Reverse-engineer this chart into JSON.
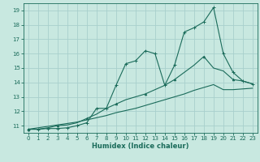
{
  "title": "",
  "xlabel": "Humidex (Indice chaleur)",
  "ylabel": "",
  "bg_color": "#c8e8e0",
  "grid_color": "#a8d0cc",
  "line_color": "#1a6b5a",
  "x_ticks": [
    0,
    1,
    2,
    3,
    4,
    5,
    6,
    7,
    8,
    9,
    10,
    11,
    12,
    13,
    14,
    15,
    16,
    17,
    18,
    19,
    20,
    21,
    22,
    23
  ],
  "y_ticks": [
    11,
    12,
    13,
    14,
    15,
    16,
    17,
    18,
    19
  ],
  "xlim": [
    -0.5,
    23.5
  ],
  "ylim": [
    10.5,
    19.5
  ],
  "main_line": [
    10.75,
    10.75,
    10.8,
    10.8,
    10.85,
    11.0,
    11.2,
    12.2,
    12.2,
    13.8,
    15.3,
    15.5,
    16.2,
    16.0,
    13.8,
    15.2,
    17.5,
    17.8,
    18.2,
    19.2,
    16.0,
    14.7,
    14.1,
    13.9
  ],
  "line2": [
    10.75,
    10.75,
    10.85,
    11.0,
    11.05,
    11.2,
    11.5,
    11.8,
    12.2,
    12.5,
    12.8,
    13.0,
    13.2,
    13.5,
    13.8,
    14.2,
    14.7,
    15.2,
    15.8,
    15.0,
    14.8,
    14.2,
    14.1,
    13.9
  ],
  "line3": [
    10.75,
    10.85,
    10.95,
    11.05,
    11.15,
    11.25,
    11.4,
    11.55,
    11.7,
    11.9,
    12.05,
    12.2,
    12.4,
    12.6,
    12.8,
    13.0,
    13.2,
    13.45,
    13.65,
    13.85,
    13.5,
    13.5,
    13.55,
    13.6
  ]
}
